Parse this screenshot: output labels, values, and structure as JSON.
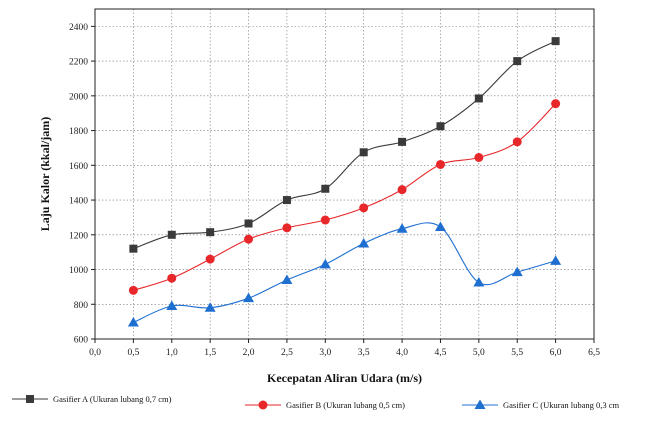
{
  "chart_data": {
    "type": "line",
    "xlabel": "Kecepatan Aliran Udara (m/s)",
    "ylabel": "Laju Kalor (kkal/jam)",
    "xlim": [
      0,
      6.5
    ],
    "ylim": [
      600,
      2500
    ],
    "x_ticks": [
      0,
      0.5,
      1,
      1.5,
      2,
      2.5,
      3,
      3.5,
      4,
      4.5,
      5,
      5.5,
      6,
      6.5
    ],
    "x_tick_labels": [
      "0,0",
      "0,5",
      "1,0",
      "1,5",
      "2,0",
      "2,5",
      "3,0",
      "3,5",
      "4,0",
      "4,5",
      "5,0",
      "5,5",
      "6,0",
      "6,5"
    ],
    "y_ticks": [
      600,
      800,
      1000,
      1200,
      1400,
      1600,
      1800,
      2000,
      2200,
      2400
    ],
    "y_tick_labels": [
      "600",
      "800",
      "1000",
      "1200",
      "1400",
      "1600",
      "1800",
      "2000",
      "2200",
      "2400"
    ],
    "grid": true,
    "legend_position": "bottom",
    "x": [
      0.5,
      1.0,
      1.5,
      2.0,
      2.5,
      3.0,
      3.5,
      4.0,
      4.5,
      5.0,
      5.5,
      6.0
    ],
    "series": [
      {
        "name": "Gasifier A (Ukuran lubang 0,7 cm)",
        "color": "#3a3a3a",
        "marker": "square",
        "values": [
          1120,
          1200,
          1215,
          1265,
          1400,
          1465,
          1675,
          1735,
          1825,
          1985,
          2200,
          2315
        ]
      },
      {
        "name": "Gasifier B (Ukuran lubang 0,5 cm)",
        "color": "#e8272a",
        "marker": "circle",
        "values": [
          880,
          950,
          1060,
          1175,
          1240,
          1285,
          1355,
          1460,
          1605,
          1645,
          1735,
          1955
        ]
      },
      {
        "name": "Gasifier C (Ukuran lubang 0,3 cm",
        "color": "#1f6fd1",
        "marker": "triangle",
        "values": [
          695,
          790,
          780,
          835,
          940,
          1030,
          1150,
          1235,
          1245,
          925,
          985,
          1050
        ]
      }
    ]
  }
}
